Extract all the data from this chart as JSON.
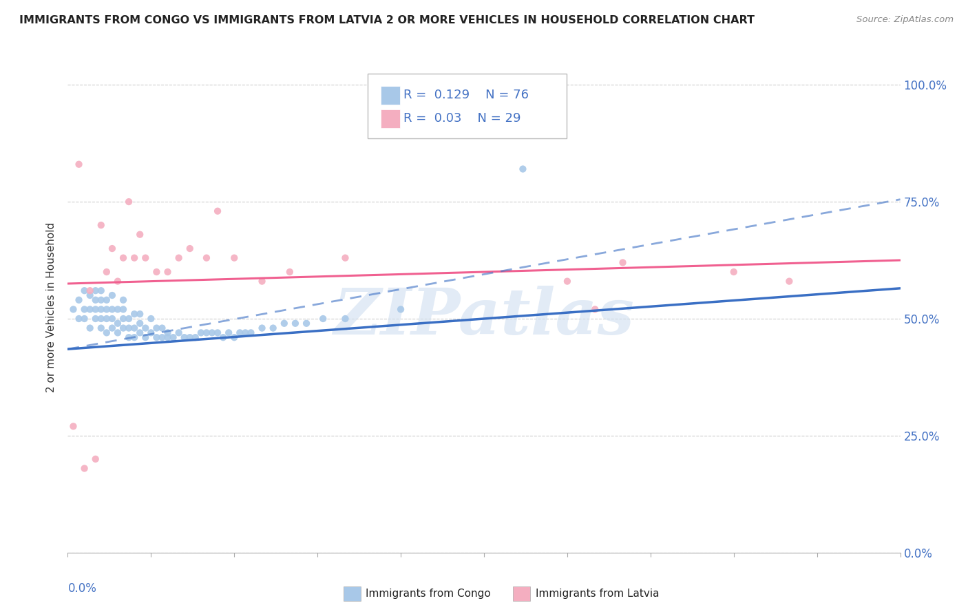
{
  "title": "IMMIGRANTS FROM CONGO VS IMMIGRANTS FROM LATVIA 2 OR MORE VEHICLES IN HOUSEHOLD CORRELATION CHART",
  "source": "Source: ZipAtlas.com",
  "ylabel": "2 or more Vehicles in Household",
  "ytick_labels": [
    "0.0%",
    "25.0%",
    "50.0%",
    "75.0%",
    "100.0%"
  ],
  "ytick_values": [
    0.0,
    0.25,
    0.5,
    0.75,
    1.0
  ],
  "xlim": [
    0.0,
    0.15
  ],
  "ylim": [
    0.0,
    1.05
  ],
  "congo_R": 0.129,
  "congo_N": 76,
  "latvia_R": 0.03,
  "latvia_N": 29,
  "congo_color": "#a8c8e8",
  "latvia_color": "#f4aec0",
  "congo_line_color": "#3a6fc4",
  "latvia_line_color": "#f06090",
  "congo_trend": [
    0.0,
    0.15,
    0.435,
    0.565
  ],
  "latvia_trend": [
    0.0,
    0.15,
    0.575,
    0.625
  ],
  "congo_dashed_trend": [
    0.0,
    0.15,
    0.435,
    0.755
  ],
  "watermark_text": "ZIPatlas",
  "congo_x": [
    0.001,
    0.002,
    0.002,
    0.003,
    0.003,
    0.003,
    0.004,
    0.004,
    0.004,
    0.005,
    0.005,
    0.005,
    0.005,
    0.006,
    0.006,
    0.006,
    0.006,
    0.006,
    0.007,
    0.007,
    0.007,
    0.007,
    0.008,
    0.008,
    0.008,
    0.008,
    0.009,
    0.009,
    0.009,
    0.01,
    0.01,
    0.01,
    0.01,
    0.011,
    0.011,
    0.011,
    0.012,
    0.012,
    0.012,
    0.013,
    0.013,
    0.013,
    0.014,
    0.014,
    0.015,
    0.015,
    0.016,
    0.016,
    0.017,
    0.017,
    0.018,
    0.018,
    0.019,
    0.02,
    0.021,
    0.022,
    0.023,
    0.024,
    0.025,
    0.026,
    0.027,
    0.028,
    0.029,
    0.03,
    0.031,
    0.032,
    0.033,
    0.035,
    0.037,
    0.039,
    0.041,
    0.043,
    0.046,
    0.05,
    0.06,
    0.082
  ],
  "congo_y": [
    0.52,
    0.5,
    0.54,
    0.5,
    0.52,
    0.56,
    0.48,
    0.52,
    0.55,
    0.5,
    0.52,
    0.54,
    0.56,
    0.48,
    0.5,
    0.52,
    0.54,
    0.56,
    0.47,
    0.5,
    0.52,
    0.54,
    0.48,
    0.5,
    0.52,
    0.55,
    0.47,
    0.49,
    0.52,
    0.48,
    0.5,
    0.52,
    0.54,
    0.46,
    0.48,
    0.5,
    0.46,
    0.48,
    0.51,
    0.47,
    0.49,
    0.51,
    0.46,
    0.48,
    0.47,
    0.5,
    0.46,
    0.48,
    0.46,
    0.48,
    0.46,
    0.47,
    0.46,
    0.47,
    0.46,
    0.46,
    0.46,
    0.47,
    0.47,
    0.47,
    0.47,
    0.46,
    0.47,
    0.46,
    0.47,
    0.47,
    0.47,
    0.48,
    0.48,
    0.49,
    0.49,
    0.49,
    0.5,
    0.5,
    0.52,
    0.82
  ],
  "latvia_x": [
    0.001,
    0.002,
    0.003,
    0.004,
    0.005,
    0.006,
    0.007,
    0.008,
    0.009,
    0.01,
    0.011,
    0.012,
    0.013,
    0.014,
    0.016,
    0.018,
    0.02,
    0.022,
    0.025,
    0.027,
    0.03,
    0.035,
    0.04,
    0.05,
    0.09,
    0.095,
    0.1,
    0.12,
    0.13
  ],
  "latvia_y": [
    0.27,
    0.83,
    0.18,
    0.56,
    0.2,
    0.7,
    0.6,
    0.65,
    0.58,
    0.63,
    0.75,
    0.63,
    0.68,
    0.63,
    0.6,
    0.6,
    0.63,
    0.65,
    0.63,
    0.73,
    0.63,
    0.58,
    0.6,
    0.63,
    0.58,
    0.52,
    0.62,
    0.6,
    0.58
  ]
}
